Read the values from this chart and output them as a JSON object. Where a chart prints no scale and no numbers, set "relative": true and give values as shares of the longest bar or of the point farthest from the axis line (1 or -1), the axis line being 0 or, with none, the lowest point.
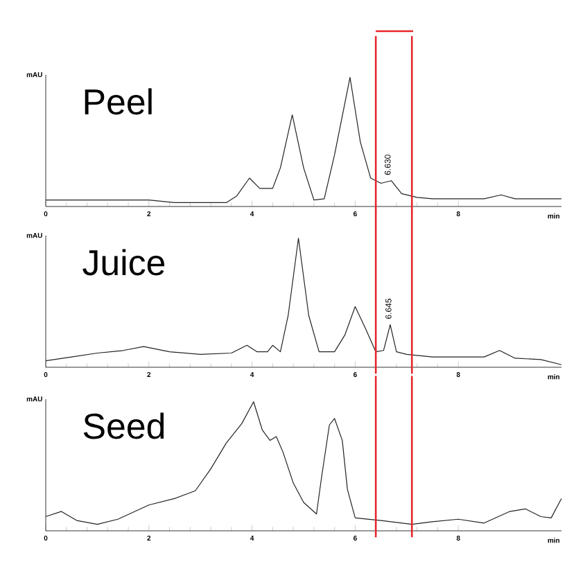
{
  "chart_data": [
    {
      "type": "line",
      "title": "Peel",
      "ylabel": "mAU",
      "xlabel": "min",
      "relative": true,
      "xlim": [
        0,
        10
      ],
      "xticks": [
        0,
        2,
        4,
        6,
        8
      ],
      "series": [
        {
          "color": "#222222",
          "x": [
            0,
            1,
            2,
            2.5,
            3,
            3.5,
            3.7,
            3.95,
            4.15,
            4.4,
            4.55,
            4.78,
            5.0,
            5.2,
            5.4,
            5.6,
            5.9,
            6.1,
            6.3,
            6.5,
            6.7,
            6.9,
            7.2,
            7.5,
            8.5,
            8.83,
            9.1,
            10
          ],
          "values": [
            0.05,
            0.05,
            0.05,
            0.03,
            0.03,
            0.03,
            0.08,
            0.22,
            0.14,
            0.14,
            0.3,
            0.71,
            0.3,
            0.05,
            0.06,
            0.4,
            1.0,
            0.5,
            0.22,
            0.18,
            0.2,
            0.1,
            0.07,
            0.06,
            0.06,
            0.09,
            0.06,
            0.06
          ]
        }
      ],
      "ref_lines": [
        {
          "axis": "x",
          "value": 6.4,
          "color": "#e8262b"
        },
        {
          "axis": "x",
          "value": 7.1,
          "color": "#e8262b"
        }
      ],
      "annotations": [
        {
          "text": "6.630",
          "x": 6.63,
          "y": 0.2
        }
      ]
    },
    {
      "type": "line",
      "title": "Juice",
      "ylabel": "mAU",
      "xlabel": "min",
      "relative": true,
      "xlim": [
        0,
        10
      ],
      "xticks": [
        0,
        2,
        4,
        6,
        8
      ],
      "series": [
        {
          "color": "#222222",
          "x": [
            0,
            0.5,
            1.0,
            1.5,
            1.9,
            2.4,
            3.0,
            3.6,
            3.9,
            4.1,
            4.3,
            4.4,
            4.55,
            4.7,
            4.9,
            5.1,
            5.3,
            5.6,
            5.8,
            6.0,
            6.2,
            6.4,
            6.55,
            6.68,
            6.8,
            7.0,
            7.5,
            8.5,
            8.8,
            9.1,
            9.6,
            10
          ],
          "values": [
            0.05,
            0.08,
            0.11,
            0.13,
            0.16,
            0.12,
            0.1,
            0.11,
            0.17,
            0.12,
            0.12,
            0.17,
            0.12,
            0.4,
            1.0,
            0.4,
            0.12,
            0.12,
            0.25,
            0.47,
            0.3,
            0.12,
            0.13,
            0.33,
            0.12,
            0.1,
            0.08,
            0.08,
            0.13,
            0.07,
            0.06,
            0.02
          ]
        }
      ],
      "ref_lines": [
        {
          "axis": "x",
          "value": 6.4,
          "color": "#e8262b"
        },
        {
          "axis": "x",
          "value": 7.1,
          "color": "#e8262b"
        }
      ],
      "annotations": [
        {
          "text": "6.645",
          "x": 6.645,
          "y": 0.33
        }
      ]
    },
    {
      "type": "line",
      "title": "Seed",
      "ylabel": "mAU",
      "xlabel": "min",
      "relative": true,
      "xlim": [
        0,
        10
      ],
      "xticks": [
        0,
        2,
        4,
        6,
        8
      ],
      "series": [
        {
          "color": "#222222",
          "x": [
            0,
            0.3,
            0.6,
            1.0,
            1.4,
            2.0,
            2.5,
            2.9,
            3.2,
            3.5,
            3.8,
            4.03,
            4.2,
            4.35,
            4.47,
            4.6,
            4.8,
            5.0,
            5.25,
            5.35,
            5.5,
            5.6,
            5.75,
            5.85,
            6.0,
            6.5,
            7.1,
            7.5,
            8.0,
            8.5,
            9.0,
            9.3,
            9.6,
            9.8,
            10
          ],
          "values": [
            0.11,
            0.15,
            0.08,
            0.05,
            0.09,
            0.2,
            0.25,
            0.31,
            0.48,
            0.68,
            0.83,
            1.0,
            0.78,
            0.7,
            0.73,
            0.61,
            0.37,
            0.22,
            0.13,
            0.42,
            0.82,
            0.87,
            0.7,
            0.32,
            0.1,
            0.08,
            0.05,
            0.07,
            0.09,
            0.06,
            0.15,
            0.17,
            0.11,
            0.1,
            0.25
          ]
        }
      ],
      "ref_lines": [
        {
          "axis": "x",
          "value": 6.4,
          "color": "#e8262b"
        },
        {
          "axis": "x",
          "value": 7.1,
          "color": "#e8262b"
        }
      ]
    }
  ]
}
